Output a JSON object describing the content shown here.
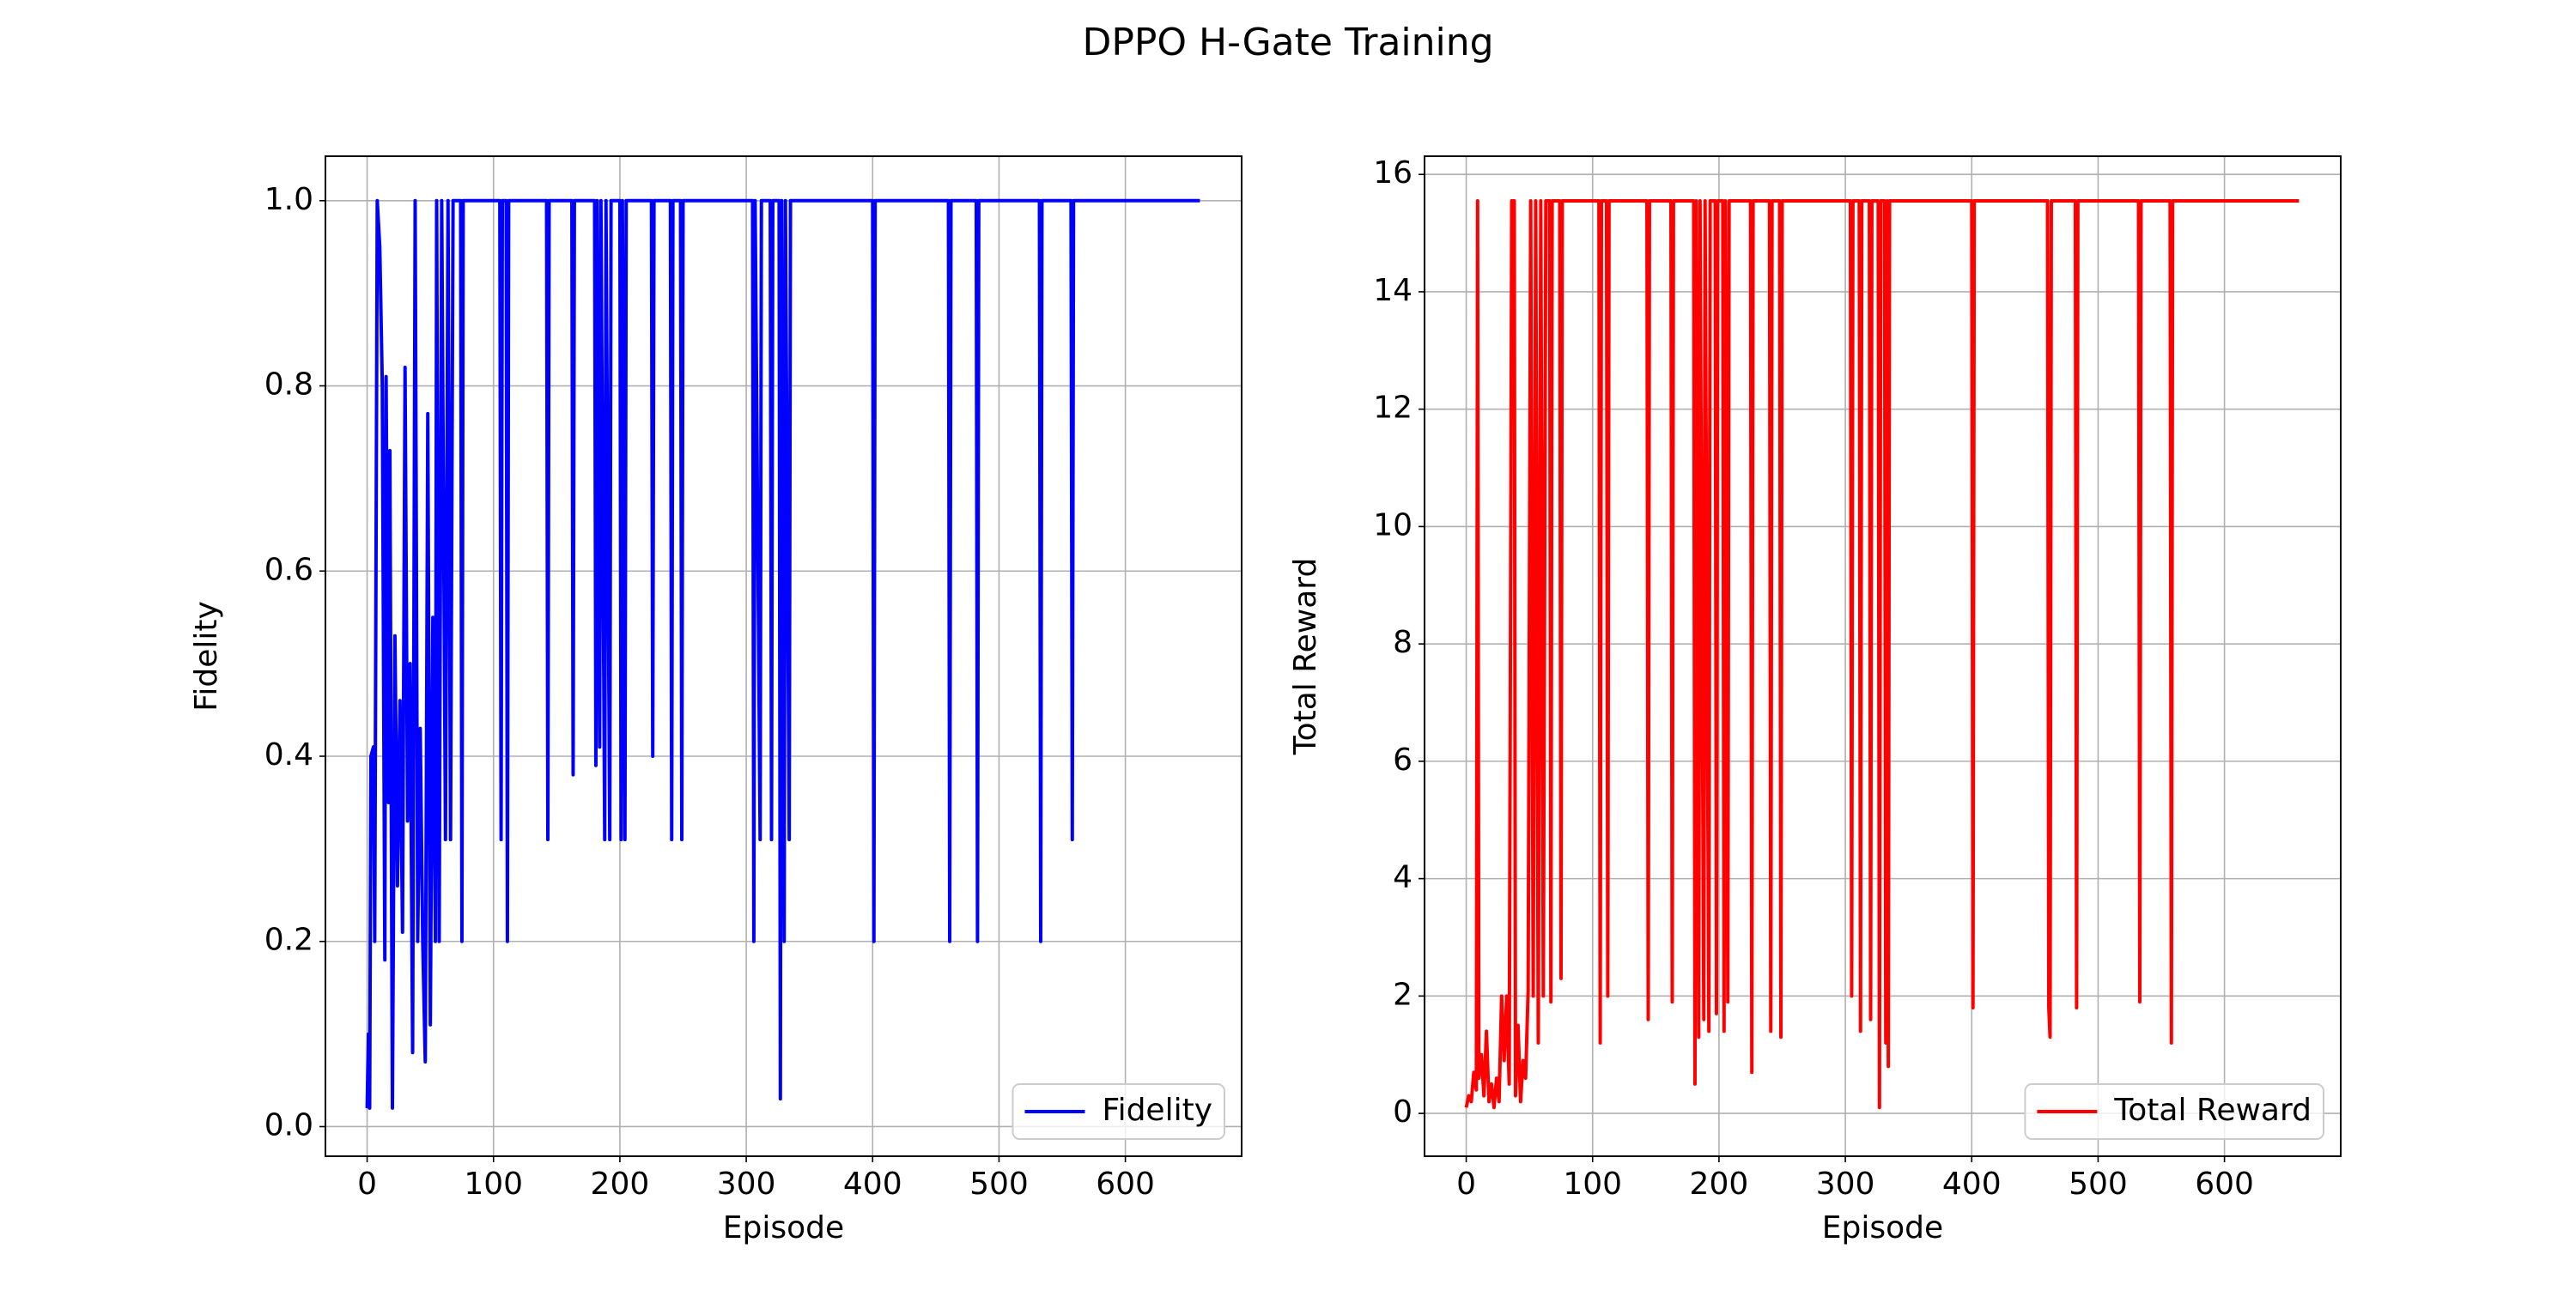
{
  "title": "DPPO H-Gate Training",
  "chart_data": [
    {
      "type": "line",
      "xlabel": "Episode",
      "ylabel": "Fidelity",
      "xlim": [
        -33,
        692
      ],
      "ylim": [
        -0.032,
        1.048
      ],
      "xticks": [
        0,
        100,
        200,
        300,
        400,
        500,
        600
      ],
      "yticks": [
        {
          "value": 0,
          "label": "0.0"
        },
        0.2,
        0.4,
        0.6,
        0.8,
        {
          "value": 1,
          "label": "1.0"
        }
      ],
      "grid": true,
      "legend": "lower right",
      "x": [
        0,
        1,
        2,
        3,
        5,
        6,
        8,
        10,
        12,
        14,
        15,
        17,
        18,
        20,
        22,
        24,
        26,
        28,
        30,
        32,
        34,
        36,
        38,
        40,
        42,
        44,
        46,
        48,
        50,
        52,
        54,
        55,
        57,
        59,
        62,
        64,
        66,
        68,
        74,
        75,
        76,
        105,
        106,
        107,
        110,
        111,
        112,
        142,
        143,
        144,
        162,
        163,
        164,
        180,
        181,
        182,
        184,
        185,
        188,
        189,
        192,
        193,
        200,
        201,
        202,
        204,
        205,
        225,
        226,
        227,
        240,
        241,
        242,
        248,
        249,
        250,
        305,
        306,
        307,
        311,
        312,
        319,
        320,
        321,
        326,
        327,
        328,
        330,
        331,
        334,
        335,
        400,
        401,
        402,
        460,
        461,
        462,
        482,
        483,
        484,
        532,
        533,
        534,
        557,
        558,
        559,
        659
      ],
      "series": [
        {
          "name": "Fidelity",
          "color": "#0000ff",
          "values": [
            0.02,
            0.1,
            0.02,
            0.4,
            0.41,
            0.2,
            1.0,
            0.95,
            0.8,
            0.18,
            0.81,
            0.35,
            0.73,
            0.02,
            0.53,
            0.26,
            0.46,
            0.21,
            0.82,
            0.33,
            0.5,
            0.08,
            1.0,
            0.2,
            0.43,
            0.2,
            0.07,
            0.77,
            0.11,
            0.55,
            0.2,
            1.0,
            0.2,
            1.0,
            0.31,
            1.0,
            0.31,
            1.0,
            1.0,
            0.2,
            1.0,
            1.0,
            0.31,
            1.0,
            1.0,
            0.2,
            1.0,
            1.0,
            0.31,
            1.0,
            1.0,
            0.38,
            1.0,
            1.0,
            0.39,
            1.0,
            0.41,
            1.0,
            0.31,
            1.0,
            0.31,
            1.0,
            1.0,
            0.31,
            1.0,
            0.31,
            1.0,
            1.0,
            0.4,
            1.0,
            1.0,
            0.31,
            1.0,
            1.0,
            0.31,
            1.0,
            1.0,
            0.2,
            1.0,
            0.31,
            1.0,
            1.0,
            0.31,
            1.0,
            1.0,
            0.03,
            1.0,
            0.2,
            1.0,
            0.31,
            1.0,
            1.0,
            0.2,
            1.0,
            1.0,
            0.2,
            1.0,
            1.0,
            0.2,
            1.0,
            1.0,
            0.2,
            1.0,
            1.0,
            0.31,
            1.0,
            1.0
          ]
        }
      ]
    },
    {
      "type": "line",
      "xlabel": "Episode",
      "ylabel": "Total Reward",
      "xlim": [
        -33,
        692
      ],
      "ylim": [
        -0.73,
        16.31
      ],
      "xticks": [
        0,
        100,
        200,
        300,
        400,
        500,
        600
      ],
      "yticks": [
        0,
        2,
        4,
        6,
        8,
        10,
        12,
        14,
        16
      ],
      "grid": true,
      "legend": "lower right",
      "x": [
        0,
        2,
        4,
        6,
        8,
        9,
        10,
        12,
        14,
        16,
        18,
        20,
        22,
        24,
        26,
        28,
        30,
        32,
        34,
        36,
        38,
        39,
        41,
        43,
        45,
        47,
        49,
        51,
        53,
        55,
        57,
        59,
        61,
        63,
        66,
        67,
        68,
        74,
        75,
        76,
        105,
        106,
        107,
        111,
        112,
        113,
        143,
        144,
        145,
        162,
        163,
        164,
        180,
        181,
        182,
        184,
        185,
        188,
        189,
        192,
        193,
        197,
        198,
        199,
        203,
        204,
        205,
        207,
        208,
        225,
        226,
        227,
        240,
        241,
        242,
        248,
        249,
        250,
        304,
        305,
        306,
        311,
        312,
        313,
        319,
        320,
        321,
        326,
        327,
        328,
        331,
        332,
        333,
        334,
        335,
        400,
        401,
        402,
        460,
        461,
        462,
        463,
        482,
        483,
        484,
        532,
        533,
        534,
        557,
        558,
        559,
        659
      ],
      "series": [
        {
          "name": "Total Reward",
          "color": "#ff0000",
          "values": [
            0.1,
            0.3,
            0.2,
            0.7,
            0.4,
            15.55,
            0.6,
            1.0,
            0.3,
            1.4,
            0.2,
            0.5,
            0.1,
            0.6,
            0.2,
            2.0,
            0.9,
            2.0,
            0.5,
            15.55,
            15.55,
            0.3,
            1.5,
            0.2,
            0.9,
            0.6,
            2.1,
            15.55,
            2.0,
            15.55,
            1.2,
            15.55,
            2.0,
            15.55,
            15.55,
            1.9,
            15.55,
            15.55,
            2.3,
            15.55,
            15.55,
            1.2,
            15.55,
            15.55,
            2.0,
            15.55,
            15.55,
            1.6,
            15.55,
            15.55,
            1.9,
            15.55,
            15.55,
            0.5,
            15.55,
            1.3,
            15.55,
            1.6,
            15.55,
            1.4,
            15.55,
            15.55,
            1.7,
            15.55,
            15.55,
            1.4,
            15.55,
            1.9,
            15.55,
            15.55,
            0.7,
            15.55,
            15.55,
            1.4,
            15.55,
            15.55,
            1.3,
            15.55,
            15.55,
            2.0,
            15.55,
            15.55,
            1.4,
            15.55,
            15.55,
            1.6,
            15.55,
            15.55,
            0.1,
            15.55,
            15.55,
            1.2,
            15.55,
            0.8,
            15.55,
            15.55,
            1.8,
            15.55,
            15.55,
            1.8,
            1.3,
            15.55,
            15.55,
            1.8,
            15.55,
            15.55,
            1.9,
            15.55,
            15.55,
            1.2,
            15.55,
            15.55
          ]
        }
      ]
    }
  ]
}
